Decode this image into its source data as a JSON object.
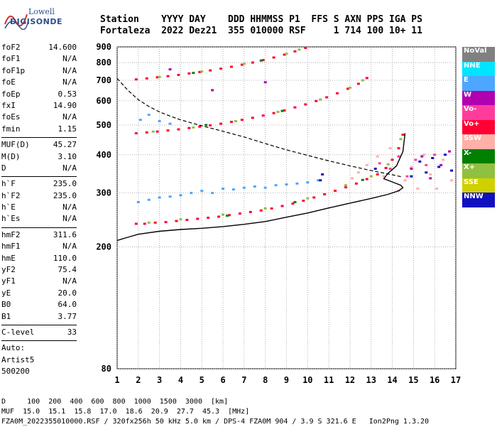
{
  "logo": {
    "line1": "Lowell",
    "line2": "DIGISONDE"
  },
  "header": {
    "labels": [
      "Station",
      "YYYY",
      "DAY",
      "DDD",
      "HHMMSS",
      "P1",
      "FFS",
      "S",
      "AXN",
      "PPS",
      "IGA",
      "PS"
    ],
    "values": [
      "Fortaleza",
      "2022",
      "Dez21",
      "355",
      "010000",
      "RSF",
      "1",
      "714",
      "100",
      "10+",
      "11"
    ]
  },
  "parameters": {
    "group1": [
      {
        "name": "foF2",
        "value": "14.600"
      },
      {
        "name": "foF1",
        "value": "N/A"
      },
      {
        "name": "foF1p",
        "value": "N/A"
      },
      {
        "name": "foE",
        "value": "N/A"
      },
      {
        "name": "foEp",
        "value": "0.53"
      },
      {
        "name": "fxI",
        "value": "14.90"
      },
      {
        "name": "foEs",
        "value": "N/A"
      },
      {
        "name": "fmin",
        "value": "1.15"
      }
    ],
    "group2": [
      {
        "name": "MUF(D)",
        "value": "45.27"
      },
      {
        "name": "M(D)",
        "value": "3.10"
      },
      {
        "name": "D",
        "value": "N/A"
      }
    ],
    "group3": [
      {
        "name": "h`F",
        "value": "235.0"
      },
      {
        "name": "h`F2",
        "value": "235.0"
      },
      {
        "name": "h`E",
        "value": "N/A"
      },
      {
        "name": "h`Es",
        "value": "N/A"
      }
    ],
    "group4": [
      {
        "name": "hmF2",
        "value": "311.6"
      },
      {
        "name": "hmF1",
        "value": "N/A"
      },
      {
        "name": "hmE",
        "value": "110.0"
      },
      {
        "name": "yF2",
        "value": "75.4"
      },
      {
        "name": "yF1",
        "value": "N/A"
      },
      {
        "name": "yE",
        "value": "20.0"
      },
      {
        "name": "B0",
        "value": "64.0"
      },
      {
        "name": "B1",
        "value": "3.77"
      }
    ],
    "group5": [
      {
        "name": "C-level",
        "value": "33"
      }
    ],
    "auto": [
      "Auto:",
      "Artist5",
      "500200"
    ]
  },
  "legend": [
    {
      "label": "NoVal",
      "color": "#808080"
    },
    {
      "label": "NNE",
      "color": "#00e5ff"
    },
    {
      "label": "E",
      "color": "#4da6ff"
    },
    {
      "label": "W",
      "color": "#b000b0"
    },
    {
      "label": "Vo-",
      "color": "#ff3c9e"
    },
    {
      "label": "Vo+",
      "color": "#ff0033"
    },
    {
      "label": "SSW",
      "color": "#ffb0a8"
    },
    {
      "label": "X-",
      "color": "#008000"
    },
    {
      "label": "X+",
      "color": "#90c040"
    },
    {
      "label": "SSE",
      "color": "#d0d000"
    },
    {
      "label": "NNW",
      "color": "#1010c0"
    }
  ],
  "chart_data": {
    "type": "scatter",
    "title": "",
    "xlabel": "",
    "ylabel": "",
    "xlim": [
      1,
      17
    ],
    "ylim": [
      80,
      900
    ],
    "y_scale": "log",
    "x_ticks": [
      1,
      2,
      3,
      4,
      5,
      6,
      7,
      8,
      9,
      10,
      11,
      12,
      13,
      14,
      15,
      16,
      17
    ],
    "y_ticks": [
      80,
      200,
      300,
      400,
      500,
      600,
      700,
      800,
      900
    ],
    "grid": true,
    "legend_position": "right",
    "series": [
      {
        "name": "Vo+",
        "color": "#ff0033",
        "points": [
          [
            1.9,
            238
          ],
          [
            2.3,
            238
          ],
          [
            2.8,
            240
          ],
          [
            3.3,
            241
          ],
          [
            3.8,
            243
          ],
          [
            4.3,
            245
          ],
          [
            4.8,
            247
          ],
          [
            5.3,
            249
          ],
          [
            5.8,
            251
          ],
          [
            6.3,
            254
          ],
          [
            6.8,
            257
          ],
          [
            7.3,
            260
          ],
          [
            7.8,
            263
          ],
          [
            8.3,
            267
          ],
          [
            8.8,
            272
          ],
          [
            9.3,
            277
          ],
          [
            9.8,
            283
          ],
          [
            10.3,
            290
          ],
          [
            10.8,
            297
          ],
          [
            11.3,
            305
          ],
          [
            11.8,
            313
          ],
          [
            12.3,
            322
          ],
          [
            12.8,
            333
          ],
          [
            13.3,
            345
          ],
          [
            13.7,
            362
          ],
          [
            14.0,
            385
          ],
          [
            14.3,
            420
          ],
          [
            14.5,
            465
          ],
          [
            1.9,
            470
          ],
          [
            2.4,
            473
          ],
          [
            2.9,
            476
          ],
          [
            3.4,
            480
          ],
          [
            3.9,
            484
          ],
          [
            4.4,
            489
          ],
          [
            4.9,
            494
          ],
          [
            5.4,
            499
          ],
          [
            5.9,
            505
          ],
          [
            6.4,
            512
          ],
          [
            6.9,
            520
          ],
          [
            7.4,
            528
          ],
          [
            7.9,
            537
          ],
          [
            8.4,
            547
          ],
          [
            8.9,
            558
          ],
          [
            9.4,
            571
          ],
          [
            9.9,
            584
          ],
          [
            10.4,
            599
          ],
          [
            10.9,
            616
          ],
          [
            11.4,
            635
          ],
          [
            11.9,
            657
          ],
          [
            12.4,
            682
          ],
          [
            12.8,
            712
          ],
          [
            1.9,
            705
          ],
          [
            2.4,
            710
          ],
          [
            2.9,
            716
          ],
          [
            3.4,
            722
          ],
          [
            3.9,
            729
          ],
          [
            4.4,
            737
          ],
          [
            4.9,
            745
          ],
          [
            5.4,
            754
          ],
          [
            5.9,
            764
          ],
          [
            6.4,
            775
          ],
          [
            6.9,
            787
          ],
          [
            7.4,
            800
          ],
          [
            7.9,
            815
          ],
          [
            8.4,
            831
          ],
          [
            8.9,
            849
          ],
          [
            9.4,
            870
          ],
          [
            9.9,
            893
          ]
        ]
      },
      {
        "name": "X+",
        "color": "#90c040",
        "points": [
          [
            2.5,
            240
          ],
          [
            4.0,
            246
          ],
          [
            6.0,
            255
          ],
          [
            8.0,
            267
          ],
          [
            10.0,
            288
          ],
          [
            11.8,
            318
          ],
          [
            13.0,
            340
          ],
          [
            13.8,
            372
          ],
          [
            14.4,
            450
          ],
          [
            2.7,
            476
          ],
          [
            4.6,
            491
          ],
          [
            6.6,
            515
          ],
          [
            8.6,
            552
          ],
          [
            10.6,
            606
          ],
          [
            12.0,
            662
          ],
          [
            12.6,
            700
          ],
          [
            3.0,
            718
          ],
          [
            5.0,
            748
          ],
          [
            7.0,
            792
          ],
          [
            9.0,
            855
          ],
          [
            9.6,
            882
          ]
        ]
      },
      {
        "name": "E",
        "color": "#4da6ff",
        "points": [
          [
            2.0,
            280
          ],
          [
            2.5,
            285
          ],
          [
            3.0,
            290
          ],
          [
            3.5,
            292
          ],
          [
            4.0,
            295
          ],
          [
            4.5,
            300
          ],
          [
            5.0,
            305
          ],
          [
            5.5,
            300
          ],
          [
            6.0,
            310
          ],
          [
            6.5,
            308
          ],
          [
            7.0,
            312
          ],
          [
            7.5,
            315
          ],
          [
            8.0,
            312
          ],
          [
            8.5,
            318
          ],
          [
            9.0,
            320
          ],
          [
            9.5,
            322
          ],
          [
            10.0,
            325
          ],
          [
            10.5,
            330
          ],
          [
            2.1,
            520
          ],
          [
            2.5,
            540
          ],
          [
            3.0,
            515
          ],
          [
            3.5,
            505
          ]
        ]
      },
      {
        "name": "NNW",
        "color": "#1010c0",
        "points": [
          [
            10.6,
            330
          ],
          [
            10.7,
            345
          ],
          [
            13.2,
            360
          ],
          [
            14.9,
            340
          ],
          [
            15.3,
            380
          ],
          [
            15.6,
            350
          ],
          [
            15.9,
            390
          ],
          [
            16.2,
            365
          ],
          [
            16.5,
            400
          ],
          [
            16.8,
            355
          ]
        ]
      },
      {
        "name": "SSW",
        "color": "#ffb0a8",
        "points": [
          [
            12.1,
            335
          ],
          [
            12.4,
            350
          ],
          [
            12.8,
            370
          ],
          [
            13.3,
            395
          ],
          [
            13.6,
            340
          ],
          [
            13.9,
            420
          ],
          [
            14.3,
            305
          ],
          [
            14.6,
            330
          ],
          [
            14.9,
            365
          ],
          [
            15.2,
            310
          ],
          [
            15.5,
            400
          ],
          [
            15.8,
            345
          ],
          [
            16.1,
            310
          ],
          [
            16.4,
            385
          ],
          [
            16.8,
            330
          ]
        ]
      },
      {
        "name": "W",
        "color": "#b000b0",
        "points": [
          [
            14.9,
            360
          ],
          [
            15.4,
            395
          ],
          [
            15.8,
            335
          ],
          [
            16.3,
            370
          ],
          [
            16.7,
            410
          ],
          [
            3.5,
            760
          ],
          [
            5.5,
            650
          ],
          [
            8.0,
            690
          ]
        ]
      },
      {
        "name": "Vo-",
        "color": "#ff3c9e",
        "points": [
          [
            13.4,
            375
          ],
          [
            13.9,
            360
          ],
          [
            14.3,
            395
          ],
          [
            14.7,
            340
          ],
          [
            15.1,
            385
          ],
          [
            15.6,
            370
          ],
          [
            16.0,
            400
          ]
        ]
      },
      {
        "name": "X-",
        "color": "#008000",
        "points": [
          [
            6.2,
            253
          ],
          [
            9.4,
            280
          ],
          [
            12.6,
            331
          ],
          [
            5.2,
            500
          ],
          [
            8.8,
            556
          ],
          [
            4.6,
            740
          ],
          [
            7.8,
            812
          ]
        ]
      }
    ],
    "profile": {
      "name": "",
      "points": [
        [
          1.0,
          210
        ],
        [
          1.5,
          215
        ],
        [
          2.0,
          220
        ],
        [
          3.0,
          225
        ],
        [
          4.0,
          228
        ],
        [
          5.0,
          230
        ],
        [
          6.0,
          233
        ],
        [
          7.0,
          237
        ],
        [
          8.0,
          242
        ],
        [
          9.0,
          250
        ],
        [
          10.0,
          258
        ],
        [
          11.0,
          268
        ],
        [
          12.0,
          278
        ],
        [
          13.0,
          288
        ],
        [
          13.8,
          297
        ],
        [
          14.3,
          305
        ],
        [
          14.5,
          312
        ],
        [
          14.4,
          318
        ],
        [
          14.0,
          326
        ],
        [
          13.6,
          334
        ],
        [
          13.8,
          348
        ],
        [
          14.2,
          368
        ],
        [
          14.5,
          410
        ],
        [
          14.6,
          470
        ]
      ]
    },
    "muf_curve": {
      "name": "",
      "points": [
        [
          1.0,
          710
        ],
        [
          1.5,
          650
        ],
        [
          2.0,
          605
        ],
        [
          2.5,
          575
        ],
        [
          3.0,
          552
        ],
        [
          3.5,
          535
        ],
        [
          4.0,
          520
        ],
        [
          5.0,
          497
        ],
        [
          6.0,
          477
        ],
        [
          7.0,
          457
        ],
        [
          8.0,
          435
        ],
        [
          9.0,
          415
        ],
        [
          10.0,
          398
        ],
        [
          11.0,
          382
        ],
        [
          12.0,
          368
        ],
        [
          13.0,
          355
        ],
        [
          14.0,
          344
        ],
        [
          14.5,
          338
        ]
      ]
    }
  },
  "footer": {
    "line1_label": "D",
    "line1_values": "100  200  400  600  800  1000  1500  3000  [km]",
    "line2_label": "MUF",
    "line2_values": "15.0  15.1  15.8  17.0  18.6  20.9  27.7  45.3  [MHz]",
    "line3": "FZA0M_2022355010000.RSF / 320fx256h 50 kHz 5.0 km / DPS-4 FZA0M 904 / 3.9 S 321.6 E   Ion2Png 1.3.20"
  }
}
